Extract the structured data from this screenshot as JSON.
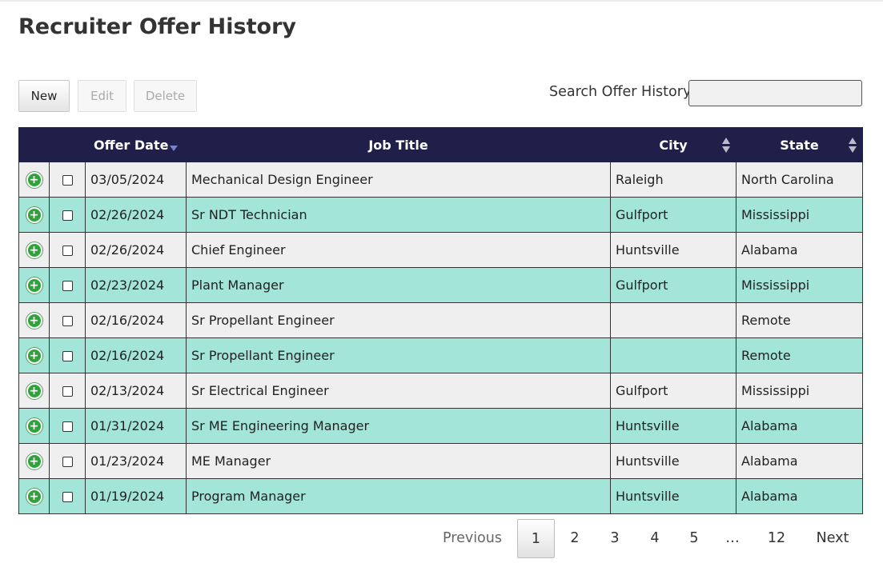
{
  "page": {
    "title": "Recruiter Offer History"
  },
  "toolbar": {
    "new_label": "New",
    "edit_label": "Edit",
    "delete_label": "Delete"
  },
  "search": {
    "label": "Search Offer History:",
    "value": ""
  },
  "table": {
    "headers": {
      "offer_date": "Offer Date",
      "job_title": "Job Title",
      "city": "City",
      "state": "State"
    },
    "sort": {
      "column": "offer_date",
      "direction": "descending"
    },
    "rows": [
      {
        "offer_date": "03/05/2024",
        "job_title": "Mechanical Design Engineer",
        "city": "Raleigh",
        "state": "North Carolina",
        "checked": false
      },
      {
        "offer_date": "02/26/2024",
        "job_title": "Sr NDT Technician",
        "city": "Gulfport",
        "state": "Mississippi",
        "checked": false
      },
      {
        "offer_date": "02/26/2024",
        "job_title": "Chief Engineer",
        "city": "Huntsville",
        "state": "Alabama",
        "checked": false
      },
      {
        "offer_date": "02/23/2024",
        "job_title": "Plant Manager",
        "city": "Gulfport",
        "state": "Mississippi",
        "checked": false
      },
      {
        "offer_date": "02/16/2024",
        "job_title": "Sr Propellant Engineer",
        "city": "",
        "state": "Remote",
        "checked": false
      },
      {
        "offer_date": "02/16/2024",
        "job_title": "Sr Propellant Engineer",
        "city": "",
        "state": "Remote",
        "checked": false
      },
      {
        "offer_date": "02/13/2024",
        "job_title": "Sr Electrical Engineer",
        "city": "Gulfport",
        "state": "Mississippi",
        "checked": false
      },
      {
        "offer_date": "01/31/2024",
        "job_title": "Sr ME Engineering Manager",
        "city": "Huntsville",
        "state": "Alabama",
        "checked": false
      },
      {
        "offer_date": "01/23/2024",
        "job_title": "ME Manager",
        "city": "Huntsville",
        "state": "Alabama",
        "checked": false
      },
      {
        "offer_date": "01/19/2024",
        "job_title": "Program Manager",
        "city": "Huntsville",
        "state": "Alabama",
        "checked": false
      }
    ]
  },
  "pagination": {
    "previous_label": "Previous",
    "next_label": "Next",
    "ellipsis": "…",
    "pages": [
      "1",
      "2",
      "3",
      "4",
      "5",
      "12"
    ],
    "current_page": "1"
  },
  "colors": {
    "header_bg": "#1f1f4a",
    "row_odd": "#efefef",
    "row_even": "#a4e5da",
    "expand_icon": "#2da43a"
  },
  "icons": {
    "expand": "plus-circle-icon",
    "sort": "sort-arrows-icon"
  }
}
